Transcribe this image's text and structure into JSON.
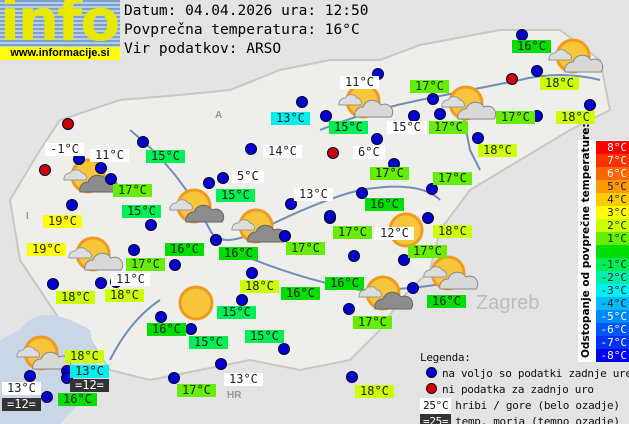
{
  "logo": {
    "text": "info",
    "url": "www.informacije.si"
  },
  "header": {
    "date_line": "Datum: 04.04.2026 ura: 12:50",
    "avg_line": "Povprečna temperatura: 16°C",
    "source_line": "Vir podatkov: ARSO"
  },
  "colors": {
    "dev_+3": "#ffff00",
    "dev_+2": "#ccff00",
    "dev_+1": "#66ee00",
    "dev_0": "#00dd00",
    "dev_-1": "#00ee55",
    "dev_-3": "#00eeee",
    "hill": "#ffffff",
    "sea": "#333333",
    "dot_ok": "#0000cc",
    "dot_missing": "#cc0000"
  },
  "stations": [
    {
      "t": "16°C",
      "c": "dev_0"
    },
    {
      "t": "11°C",
      "c": "hill"
    },
    {
      "t": "17°C",
      "c": "dev_+1"
    },
    {
      "t": "18°C",
      "c": "dev_+2"
    },
    {
      "t": "13°C",
      "c": "dev_-3"
    },
    {
      "t": "15°C",
      "c": "dev_-1"
    },
    {
      "t": "15°C",
      "c": "hill"
    },
    {
      "t": "17°C",
      "c": "dev_+1"
    },
    {
      "t": "17°C",
      "c": "dev_+1"
    },
    {
      "t": "18°C",
      "c": "dev_+2"
    },
    {
      "t": "18°C",
      "c": "dev_+2"
    },
    {
      "t": "6°C",
      "c": "hill"
    },
    {
      "t": "-1°C",
      "c": "hill"
    },
    {
      "t": "11°C",
      "c": "hill"
    },
    {
      "t": "15°C",
      "c": "dev_-1"
    },
    {
      "t": "14°C",
      "c": "hill"
    },
    {
      "t": "17°C",
      "c": "dev_+1"
    },
    {
      "t": "17°C",
      "c": "dev_+1"
    },
    {
      "t": "17°C",
      "c": "dev_+1"
    },
    {
      "t": "5°C",
      "c": "hill"
    },
    {
      "t": "15°C",
      "c": "dev_-1"
    },
    {
      "t": "13°C",
      "c": "hill"
    },
    {
      "t": "16°C",
      "c": "dev_0"
    },
    {
      "t": "15°C",
      "c": "dev_-1"
    },
    {
      "t": "19°C",
      "c": "dev_+3"
    },
    {
      "t": "17°C",
      "c": "dev_+1"
    },
    {
      "t": "12°C",
      "c": "hill"
    },
    {
      "t": "18°C",
      "c": "dev_+2"
    },
    {
      "t": "17°C",
      "c": "dev_+1"
    },
    {
      "t": "19°C",
      "c": "dev_+3"
    },
    {
      "t": "16°C",
      "c": "dev_0"
    },
    {
      "t": "16°C",
      "c": "dev_0"
    },
    {
      "t": "17°C",
      "c": "dev_+1"
    },
    {
      "t": "17°C",
      "c": "dev_+1"
    },
    {
      "t": "11°C",
      "c": "hill"
    },
    {
      "t": "16°C",
      "c": "dev_0"
    },
    {
      "t": "16°C",
      "c": "dev_0"
    },
    {
      "t": "18°C",
      "c": "dev_+2"
    },
    {
      "t": "18°C",
      "c": "dev_+2"
    },
    {
      "t": "18°C",
      "c": "dev_+2"
    },
    {
      "t": "16°C",
      "c": "dev_0"
    },
    {
      "t": "17°C",
      "c": "dev_+1"
    },
    {
      "t": "15°C",
      "c": "dev_-1"
    },
    {
      "t": "16°C",
      "c": "dev_0"
    },
    {
      "t": "15°C",
      "c": "dev_-1"
    },
    {
      "t": "15°C",
      "c": "dev_-1"
    },
    {
      "t": "18°C",
      "c": "dev_+2"
    },
    {
      "t": "13°C",
      "c": "dev_-3"
    },
    {
      "t": "=12=",
      "c": "sea"
    },
    {
      "t": "13°C",
      "c": "hill"
    },
    {
      "t": "=12=",
      "c": "sea"
    },
    {
      "t": "16°C",
      "c": "dev_0"
    },
    {
      "t": "17°C",
      "c": "dev_+1"
    },
    {
      "t": "13°C",
      "c": "hill"
    },
    {
      "t": "18°C",
      "c": "dev_+2"
    }
  ],
  "weather_icons": [
    "sun-cloud",
    "sun-cloud",
    "sun-cloud",
    "sun-dark-cloud",
    "sun-dark-cloud",
    "sun-dark-cloud",
    "sun-cloud",
    "sun",
    "sun-cloud",
    "sun-dark-cloud",
    "sun",
    "sun-cloud"
  ],
  "map_labels": {
    "zagreb": "Zagreb",
    "hr": "HR",
    "a": "A",
    "i": "I"
  },
  "scale": {
    "title": "Odstopanje od povprečne temperature:",
    "steps": [
      {
        "t": "8°C",
        "color": "#ff0000"
      },
      {
        "t": "7°C",
        "color": "#ff3300"
      },
      {
        "t": "6°C",
        "color": "#ff6600"
      },
      {
        "t": "5°C",
        "color": "#ff9900"
      },
      {
        "t": "4°C",
        "color": "#ffcc00"
      },
      {
        "t": "3°C",
        "color": "#ffff00"
      },
      {
        "t": "2°C",
        "color": "#ccff00"
      },
      {
        "t": "1°C",
        "color": "#66ee00"
      },
      {
        "t": "",
        "color": "#00dd00"
      },
      {
        "t": "-1°C",
        "color": "#00ee55"
      },
      {
        "t": "-2°C",
        "color": "#00eeaa"
      },
      {
        "t": "-3°C",
        "color": "#00eeee"
      },
      {
        "t": "-4°C",
        "color": "#00bbff"
      },
      {
        "t": "-5°C",
        "color": "#0088ff"
      },
      {
        "t": "-6°C",
        "color": "#0055ff"
      },
      {
        "t": "-7°C",
        "color": "#0033ee"
      },
      {
        "t": "-8°C",
        "color": "#0000ee"
      }
    ]
  },
  "legend": {
    "title": "Legenda:",
    "ok": "na voljo so podatki zadnje ure",
    "missing": "ni podatka za zadnjo uro",
    "hill_sample": "25°C",
    "hill": "hribi / gore (belo ozadje)",
    "sea_sample": "=25=",
    "sea": "temp. morja (temno ozadje)"
  }
}
